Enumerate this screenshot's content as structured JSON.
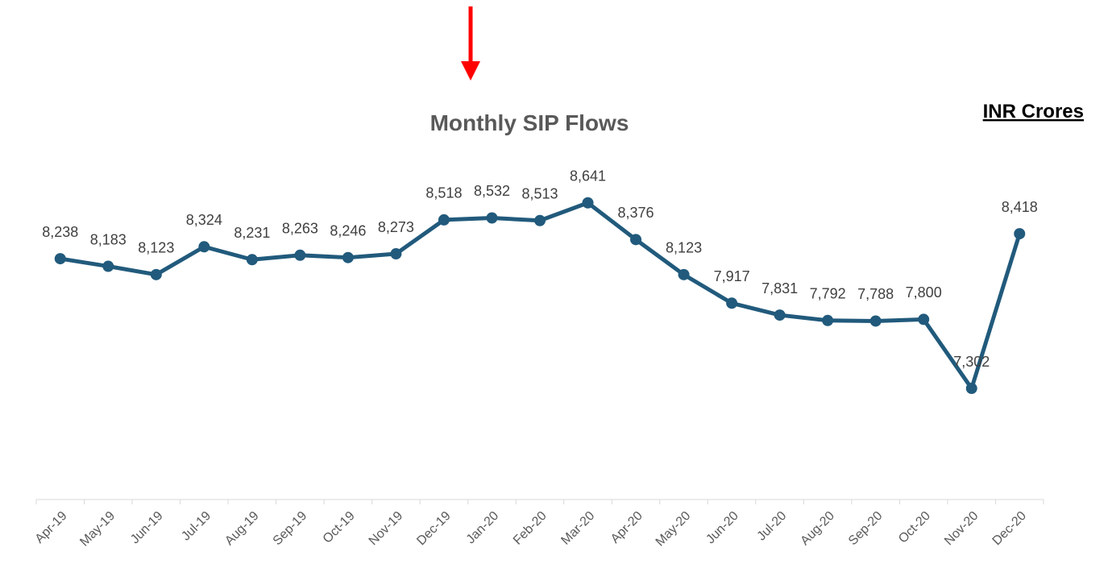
{
  "chart_data": {
    "type": "line",
    "title": "Monthly SIP Flows",
    "unit_note": "INR Crores",
    "categories": [
      "Apr-19",
      "May-19",
      "Jun-19",
      "Jul-19",
      "Aug-19",
      "Sep-19",
      "Oct-19",
      "Nov-19",
      "Dec-19",
      "Jan-20",
      "Feb-20",
      "Mar-20",
      "Apr-20",
      "May-20",
      "Jun-20",
      "Jul-20",
      "Aug-20",
      "Sep-20",
      "Oct-20",
      "Nov-20",
      "Dec-20"
    ],
    "series": [
      {
        "name": "Monthly SIP Flows",
        "color": "#215a7c",
        "values": [
          8238,
          8183,
          8123,
          8324,
          8231,
          8263,
          8246,
          8273,
          8518,
          8532,
          8513,
          8641,
          8376,
          8123,
          7917,
          7831,
          7792,
          7788,
          7800,
          7302,
          8418
        ],
        "value_labels": [
          "8,238",
          "8,183",
          "8,123",
          "8,324",
          "8,231",
          "8,263",
          "8,246",
          "8,273",
          "8,518",
          "8,532",
          "8,513",
          "8,641",
          "8,376",
          "8,123",
          "7,917",
          "7,831",
          "7,792",
          "7,788",
          "7,800",
          "7,302",
          "8,418"
        ]
      }
    ],
    "ylim": [
      6500,
      9000
    ]
  }
}
